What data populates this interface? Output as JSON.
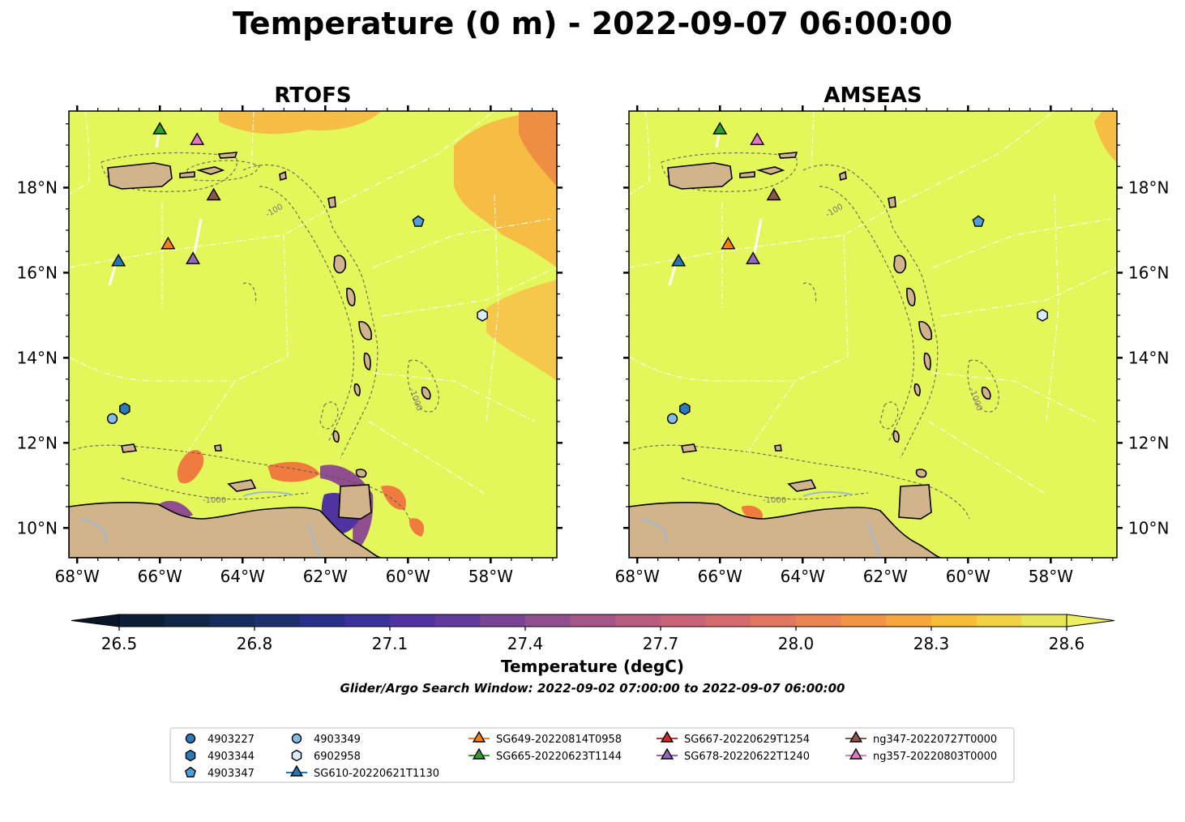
{
  "figure": {
    "title": "Temperature (0 m) - 2022-09-07 06:00:00",
    "search_window": "Glider/Argo Search Window: 2022-09-02 07:00:00 to 2022-09-07 06:00:00"
  },
  "colors": {
    "land": "#d2b48c",
    "sea_background": "#e4f75a",
    "warm_patch": "#f8b340",
    "hot_patch": "#ef7c3e",
    "river": "#9db9d6"
  },
  "chart_data": [
    {
      "type": "heatmap",
      "title": "RTOFS",
      "variable": "Temperature (degC)",
      "xlim": [
        -68.2,
        -56.4
      ],
      "ylim": [
        9.3,
        19.8
      ],
      "xticks": [
        -68,
        -66,
        -64,
        -62,
        -60,
        -58
      ],
      "xtick_labels": [
        "68°W",
        "66°W",
        "64°W",
        "62°W",
        "60°W",
        "58°W"
      ],
      "yticks": [
        10,
        12,
        14,
        16,
        18
      ],
      "ytick_labels": [
        "10°N",
        "12°N",
        "14°N",
        "16°N",
        "18°N"
      ],
      "ytick_side": "left",
      "contour_labels": [
        "-100",
        "-1000"
      ],
      "grid": false
    },
    {
      "type": "heatmap",
      "title": "AMSEAS",
      "variable": "Temperature (degC)",
      "xlim": [
        -68.2,
        -56.4
      ],
      "ylim": [
        9.3,
        19.8
      ],
      "xticks": [
        -68,
        -66,
        -64,
        -62,
        -60,
        -58
      ],
      "xtick_labels": [
        "68°W",
        "66°W",
        "64°W",
        "62°W",
        "60°W",
        "58°W"
      ],
      "yticks": [
        10,
        12,
        14,
        16,
        18
      ],
      "ytick_labels": [
        "10°N",
        "12°N",
        "14°N",
        "16°N",
        "18°N"
      ],
      "ytick_side": "right",
      "contour_labels": [
        "-100",
        "-1000"
      ],
      "grid": false
    }
  ],
  "colorbar": {
    "label": "Temperature (degC)",
    "vmin": 26.4,
    "vmax": 28.7,
    "ticks": [
      26.5,
      26.8,
      27.1,
      27.4,
      27.7,
      28.0,
      28.3,
      28.6
    ],
    "tick_labels": [
      "26.5",
      "26.8",
      "27.1",
      "27.4",
      "27.7",
      "28.0",
      "28.3",
      "28.6"
    ],
    "colors": [
      "#0b1e36",
      "#0f2647",
      "#142d5a",
      "#1c3070",
      "#283089",
      "#3a319c",
      "#4f339f",
      "#633a9b",
      "#7a4494",
      "#8f4e8d",
      "#a55588",
      "#b85c80",
      "#c86378",
      "#d66b6d",
      "#e27660",
      "#ec8352",
      "#f39346",
      "#f7a63c",
      "#f7bc38",
      "#f1d246",
      "#e7e656"
    ],
    "extend": "both"
  },
  "markers": [
    {
      "name": "SG610-20220621T1130",
      "shape": "triangle",
      "color": "#1f77b4",
      "lon": -67.0,
      "lat": 16.25
    },
    {
      "name": "SG649-20220814T0958",
      "shape": "triangle",
      "color": "#ff7f0e",
      "lon": -65.8,
      "lat": 16.65
    },
    {
      "name": "SG665-20220623T1144",
      "shape": "triangle",
      "color": "#2ca02c",
      "lon": -66.0,
      "lat": 19.35
    },
    {
      "name": "SG678-20220622T1240",
      "shape": "triangle",
      "color": "#9467bd",
      "lon": -65.2,
      "lat": 16.3
    },
    {
      "name": "ng347-20220727T0000",
      "shape": "triangle",
      "color": "#8c564b",
      "lon": -64.7,
      "lat": 17.8
    },
    {
      "name": "ng357-20220803T0000",
      "shape": "triangle",
      "color": "#e377c2",
      "lon": -65.1,
      "lat": 19.1
    },
    {
      "name": "4903344",
      "shape": "hexagon",
      "color": "#2b7bba",
      "lon": -66.85,
      "lat": 12.8
    },
    {
      "name": "4903349",
      "shape": "circle",
      "color": "#82bde8",
      "lon": -67.15,
      "lat": 12.57
    },
    {
      "name": "4903347",
      "shape": "pentagon",
      "color": "#4e9ed9",
      "lon": -59.75,
      "lat": 17.2
    },
    {
      "name": "6902958",
      "shape": "hexagon",
      "color": "#d8ecfa",
      "lon": -58.2,
      "lat": 15.0
    }
  ],
  "legend": {
    "location": "bottom-center",
    "columns": [
      [
        {
          "label": "4903227",
          "shape": "circle",
          "color": "#2b7bba",
          "line": false
        },
        {
          "label": "4903344",
          "shape": "hexagon",
          "color": "#2b7bba",
          "line": false
        },
        {
          "label": "4903347",
          "shape": "pentagon",
          "color": "#4e9ed9",
          "line": false
        }
      ],
      [
        {
          "label": "4903349",
          "shape": "circle",
          "color": "#82bde8",
          "line": false
        },
        {
          "label": "6902958",
          "shape": "hexagon",
          "color": "#d8ecfa",
          "line": false
        },
        {
          "label": "SG610-20220621T1130",
          "shape": "triangle",
          "color": "#1f77b4",
          "line": true
        }
      ],
      [
        {
          "label": "SG649-20220814T0958",
          "shape": "triangle",
          "color": "#ff7f0e",
          "line": true
        },
        {
          "label": "SG665-20220623T1144",
          "shape": "triangle",
          "color": "#2ca02c",
          "line": true
        }
      ],
      [
        {
          "label": "SG667-20220629T1254",
          "shape": "triangle",
          "color": "#d62728",
          "line": true
        },
        {
          "label": "SG678-20220622T1240",
          "shape": "triangle",
          "color": "#9467bd",
          "line": true
        }
      ],
      [
        {
          "label": "ng347-20220727T0000",
          "shape": "triangle",
          "color": "#8c564b",
          "line": true
        },
        {
          "label": "ng357-20220803T0000",
          "shape": "triangle",
          "color": "#e377c2",
          "line": true
        }
      ]
    ]
  }
}
